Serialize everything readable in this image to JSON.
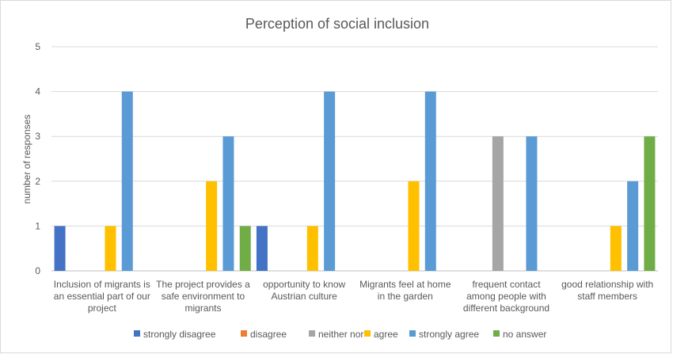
{
  "chart_data": {
    "type": "bar",
    "title": "Perception of social inclusion",
    "xlabel": "",
    "ylabel": "number of responses",
    "ylim": [
      0,
      5
    ],
    "yticks": [
      0,
      1,
      2,
      3,
      4,
      5
    ],
    "grid": true,
    "legend_position": "bottom",
    "categories": [
      [
        "Inclusion of migrants is",
        "an essential part of our",
        "project"
      ],
      [
        "The project provides a",
        "safe environment to",
        "migrants"
      ],
      [
        "opportunity to know",
        "Austrian culture"
      ],
      [
        "Migrants feel at home",
        "in the garden"
      ],
      [
        "frequent contact",
        "among people with",
        "different background"
      ],
      [
        "good relationship with",
        "staff members"
      ]
    ],
    "series": [
      {
        "name": "strongly disagree",
        "color": "#4472c4",
        "values": [
          1,
          0,
          1,
          0,
          0,
          0
        ]
      },
      {
        "name": "disagree",
        "color": "#ed7d31",
        "values": [
          0,
          0,
          0,
          0,
          0,
          0
        ]
      },
      {
        "name": "neither nor",
        "color": "#a5a5a5",
        "values": [
          0,
          0,
          0,
          0,
          3,
          0
        ]
      },
      {
        "name": "agree",
        "color": "#ffc000",
        "values": [
          1,
          2,
          1,
          2,
          0,
          1
        ]
      },
      {
        "name": "strongly agree",
        "color": "#5b9bd5",
        "values": [
          4,
          3,
          4,
          4,
          3,
          2
        ]
      },
      {
        "name": "no answer",
        "color": "#70ad47",
        "values": [
          0,
          1,
          0,
          0,
          0,
          3
        ]
      }
    ]
  }
}
